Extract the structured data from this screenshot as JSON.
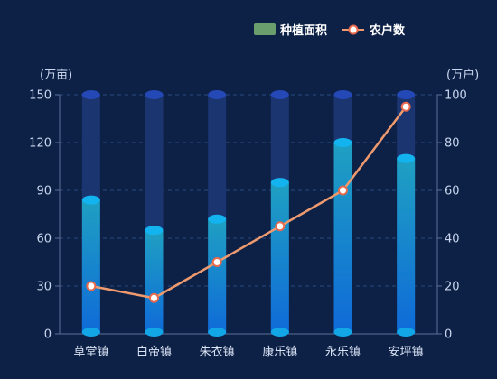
{
  "chart_data": {
    "type": "bar",
    "categories": [
      "草堂镇",
      "白帝镇",
      "朱衣镇",
      "康乐镇",
      "永乐镇",
      "安坪镇"
    ],
    "series": [
      {
        "name": "种植面积",
        "type": "bar",
        "axis": "left",
        "values": [
          84,
          65,
          72,
          95,
          120,
          110
        ]
      },
      {
        "name": "农户数",
        "type": "line",
        "axis": "right",
        "values": [
          20,
          15,
          30,
          45,
          60,
          95
        ]
      }
    ],
    "y_left": {
      "unit": "(万亩)",
      "ylim": [
        0,
        150
      ],
      "ticks": [
        0,
        30,
        60,
        90,
        120,
        150
      ]
    },
    "y_right": {
      "unit": "(万户)",
      "ylim": [
        0,
        100
      ],
      "ticks": [
        0,
        20,
        40,
        60,
        80,
        100
      ]
    },
    "grid": true,
    "legend_position": "top-right",
    "colors": {
      "background": "#0d2147",
      "bar_track": "#1a3570",
      "bar_track_cap": "#2448b5",
      "bar_top": "#1fa0c2",
      "bar_bottom": "#0f6ad8",
      "bar_cap": "#12b3ee",
      "bar_base": "#12a6e6",
      "line": "#ee9a6e",
      "marker_stroke": "#e86a4e",
      "marker_fill": "#ffffff",
      "legend_bar": "#6a9f6d",
      "grid": "#2a4a80"
    }
  }
}
